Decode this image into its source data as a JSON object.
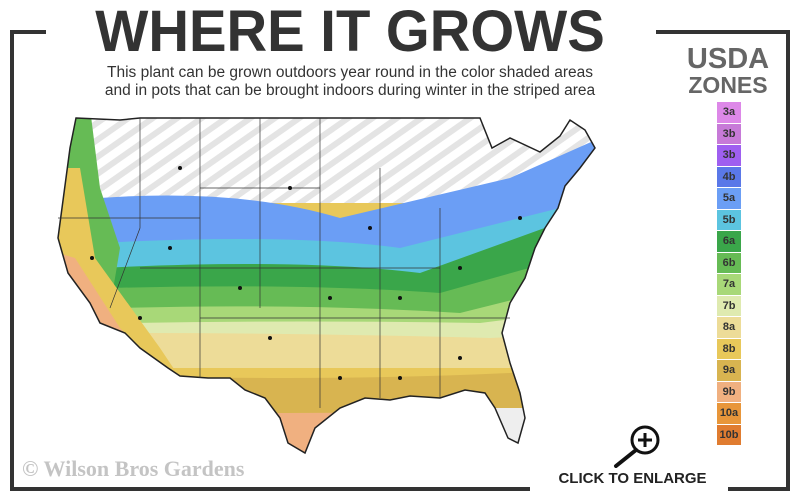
{
  "header": {
    "title": "WHERE IT GROWS",
    "subtitle_line1": "This plant can be grown outdoors year round in the color shaded areas",
    "subtitle_line2": "and in pots that can be brought indoors during winter in the striped area"
  },
  "legend": {
    "title_line1": "USDA",
    "title_line2": "ZONES",
    "zones": [
      {
        "label": "3a",
        "color": "#dd88e8"
      },
      {
        "label": "3b",
        "color": "#c77ad8"
      },
      {
        "label": "3b",
        "color": "#9f5ff0"
      },
      {
        "label": "4b",
        "color": "#5a78e8"
      },
      {
        "label": "5a",
        "color": "#6b9ef5"
      },
      {
        "label": "5b",
        "color": "#5cc4e0"
      },
      {
        "label": "6a",
        "color": "#3aa64a"
      },
      {
        "label": "6b",
        "color": "#66bb55"
      },
      {
        "label": "7a",
        "color": "#a8d878"
      },
      {
        "label": "7b",
        "color": "#dfeab0"
      },
      {
        "label": "8a",
        "color": "#eddc98"
      },
      {
        "label": "8b",
        "color": "#e8c85a"
      },
      {
        "label": "9a",
        "color": "#d8b450"
      },
      {
        "label": "9b",
        "color": "#f0b080"
      },
      {
        "label": "10a",
        "color": "#e8963a"
      },
      {
        "label": "10b",
        "color": "#e07c30"
      }
    ]
  },
  "footer": {
    "copyright": "© Wilson Bros Gardens",
    "enlarge_label": "CLICK TO ENLARGE",
    "enlarge_icon": "zoom-in-magnifier-icon"
  }
}
